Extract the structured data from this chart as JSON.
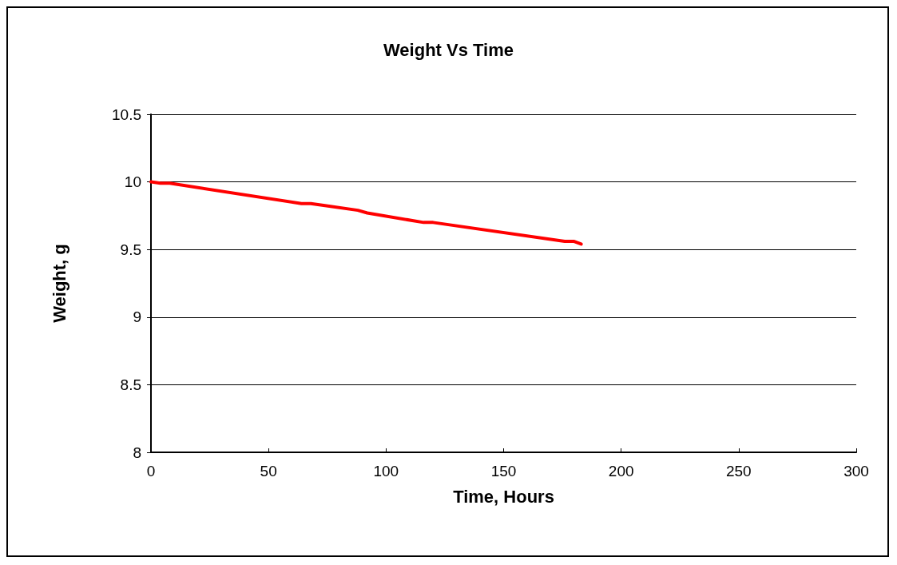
{
  "chart_data": {
    "type": "line",
    "title": "Weight Vs Time",
    "xlabel": "Time, Hours",
    "ylabel": "Weight, g",
    "x": [
      0,
      4,
      8,
      64,
      68,
      88,
      92,
      116,
      120,
      176,
      180,
      183
    ],
    "series": [
      {
        "color": "#ff0000",
        "values": [
          10,
          9.99,
          9.99,
          9.84,
          9.84,
          9.79,
          9.77,
          9.7,
          9.7,
          9.56,
          9.56,
          9.54
        ]
      }
    ],
    "xlim": [
      0,
      300
    ],
    "xticks": [
      0,
      50,
      100,
      150,
      200,
      250,
      300
    ],
    "ylim": [
      8,
      10.5
    ],
    "yticks": [
      8,
      8.5,
      9,
      9.5,
      10,
      10.5
    ],
    "grid": "y",
    "marker": "none",
    "line_style": "solid"
  }
}
